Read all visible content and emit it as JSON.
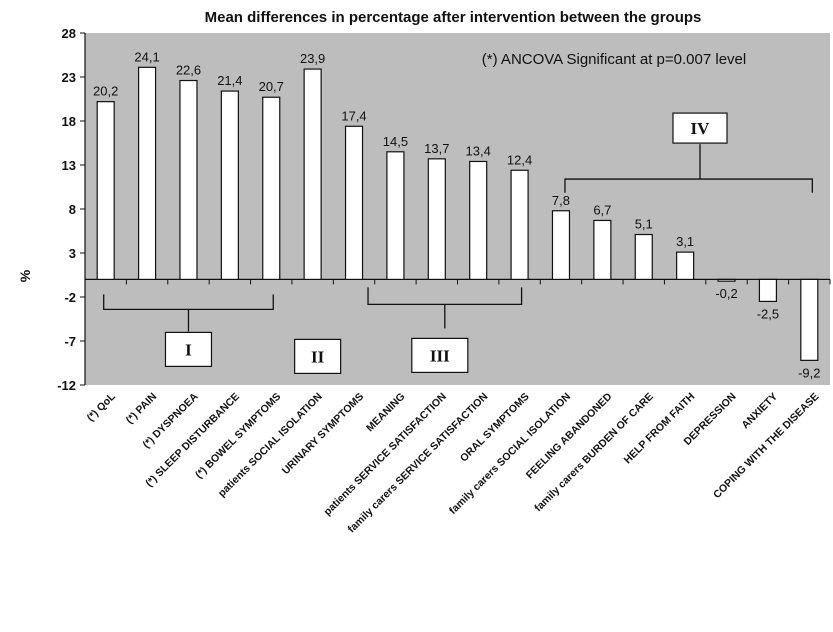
{
  "chart_data": {
    "type": "bar",
    "title": "Mean differences in percentage after intervention between the groups",
    "ylabel": "%",
    "xlabel": "",
    "ylim": [
      -12,
      28
    ],
    "yticks": [
      28,
      23,
      18,
      13,
      8,
      3,
      -2,
      -7,
      -12
    ],
    "grid": false,
    "annotation": "(*) ANCOVA Significant at p=0.007 level",
    "categories": [
      "(*) QoL",
      "(*) PAIN",
      "(*) DYSPNOEA",
      "(*) SLEEP DISTURBANCE",
      "(*) BOWEL SYMPTOMS",
      "patients  SOCIAL ISOLATION",
      "URINARY SYMPTOMS",
      "MEANING",
      "patients SERVICE SATISFACTION",
      "family carers SERVICE SATISFACTION",
      "ORAL SYMPTOMS",
      "family carers SOCIAL ISOLATION",
      "FEELING ABANDONED",
      "family carers BURDEN OF CARE",
      "HELP FROM FAITH",
      "DEPRESSION",
      "ANXIETY",
      "COPING WITH THE DISEASE"
    ],
    "values": [
      20.2,
      24.1,
      22.6,
      21.4,
      20.7,
      23.9,
      17.4,
      14.5,
      13.7,
      13.4,
      12.4,
      7.8,
      6.7,
      5.1,
      3.1,
      -0.2,
      -2.5,
      -9.2
    ],
    "value_labels": [
      "20,2",
      "24,1",
      "22,6",
      "21,4",
      "20,7",
      "23,9",
      "17,4",
      "14,5",
      "13,7",
      "13,4",
      "12,4",
      "7,8",
      "6,7",
      "5,1",
      "3,1",
      "-0,2",
      "-2,5",
      "-9,2"
    ],
    "groups": [
      {
        "label": "I",
        "from": 0,
        "to": 4
      },
      {
        "label": "II",
        "from": 5,
        "to": 5
      },
      {
        "label": "III",
        "from": 6,
        "to": 10
      },
      {
        "label": "IV",
        "from": 11,
        "to": 17
      }
    ],
    "colors": {
      "plot_background": "#bdbdbd",
      "bar_fill": "#ffffff",
      "bar_stroke": "#111111"
    }
  }
}
